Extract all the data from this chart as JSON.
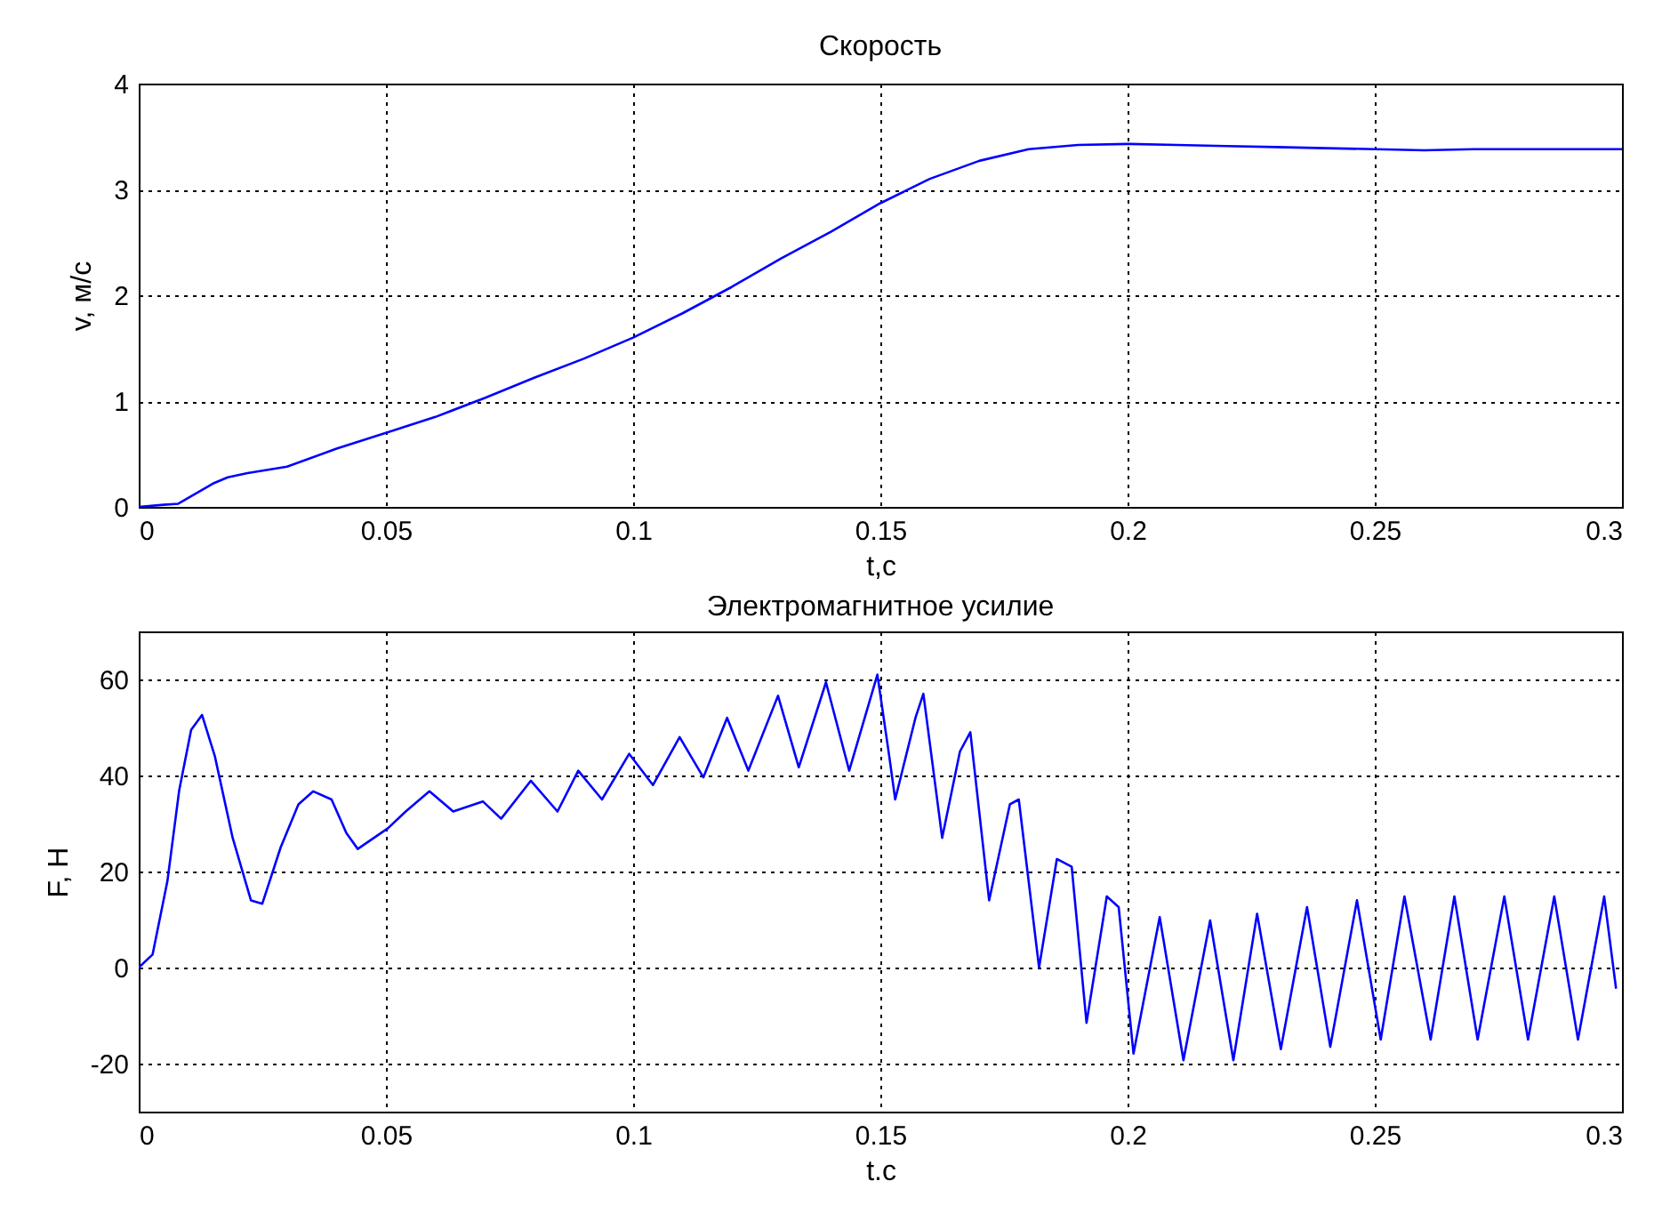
{
  "chart_data": [
    {
      "type": "line",
      "title": "Скорость",
      "xlabel": "t,c",
      "ylabel": "v, м/с",
      "xlim": [
        0,
        0.3
      ],
      "ylim": [
        0,
        4
      ],
      "xticks": [
        0,
        0.05,
        0.1,
        0.15,
        0.2,
        0.25,
        0.3
      ],
      "yticks": [
        0,
        1,
        2,
        3,
        4
      ],
      "grid": true,
      "x": [
        0,
        0.005,
        0.008,
        0.015,
        0.018,
        0.022,
        0.03,
        0.04,
        0.05,
        0.06,
        0.07,
        0.08,
        0.09,
        0.1,
        0.11,
        0.12,
        0.13,
        0.14,
        0.15,
        0.16,
        0.17,
        0.18,
        0.19,
        0.2,
        0.21,
        0.22,
        0.23,
        0.24,
        0.25,
        0.26,
        0.27,
        0.28,
        0.29,
        0.3
      ],
      "series": [
        {
          "color": "#0000ff",
          "values": [
            0,
            0.02,
            0.03,
            0.22,
            0.28,
            0.32,
            0.38,
            0.55,
            0.7,
            0.85,
            1.03,
            1.22,
            1.4,
            1.6,
            1.83,
            2.08,
            2.35,
            2.6,
            2.87,
            3.1,
            3.27,
            3.38,
            3.42,
            3.43,
            3.42,
            3.41,
            3.4,
            3.39,
            3.38,
            3.37,
            3.38,
            3.38,
            3.38,
            3.38
          ]
        }
      ]
    },
    {
      "type": "line",
      "title": "Электромагнитное усилие",
      "xlabel": "t.c",
      "ylabel": "F, H",
      "xlim": [
        0,
        0.3
      ],
      "ylim": [
        -30,
        70
      ],
      "xticks": [
        0,
        0.05,
        0.1,
        0.15,
        0.2,
        0.25,
        0.3
      ],
      "yticks": [
        -20,
        0,
        20,
        40,
        60
      ],
      "grid": true,
      "x": [
        0,
        0.0028,
        0.0058,
        0.0082,
        0.0106,
        0.0128,
        0.0154,
        0.019,
        0.0227,
        0.025,
        0.0287,
        0.0323,
        0.0353,
        0.039,
        0.042,
        0.0443,
        0.0504,
        0.054,
        0.0588,
        0.0636,
        0.0696,
        0.0733,
        0.0793,
        0.0847,
        0.0889,
        0.0937,
        0.0992,
        0.104,
        0.1094,
        0.1142,
        0.119,
        0.1233,
        0.1293,
        0.1335,
        0.139,
        0.1437,
        0.1494,
        0.1518,
        0.153,
        0.1571,
        0.1587,
        0.1625,
        0.1661,
        0.1682,
        0.172,
        0.1762,
        0.178,
        0.1821,
        0.1857,
        0.1887,
        0.1917,
        0.1958,
        0.1982,
        0.2012,
        0.2065,
        0.2113,
        0.2167,
        0.2214,
        0.2262,
        0.231,
        0.2363,
        0.241,
        0.2464,
        0.2512,
        0.256,
        0.2613,
        0.2661,
        0.2708,
        0.2762,
        0.281,
        0.2863,
        0.2911,
        0.2964,
        0.2988
      ],
      "series": [
        {
          "color": "#0000ff",
          "values": [
            0,
            2.7,
            18,
            37,
            49.5,
            52.6,
            44,
            27,
            14,
            13.3,
            25,
            34,
            36.7,
            35,
            28,
            24.7,
            29,
            32.5,
            36.7,
            32.5,
            34.6,
            31,
            38.9,
            32.5,
            41,
            35,
            44.5,
            38,
            48,
            39.6,
            52,
            41,
            56.6,
            41.7,
            59.4,
            41,
            61,
            44,
            35,
            52,
            57,
            27,
            45,
            49,
            14,
            34,
            35,
            0,
            22.6,
            21,
            -11.5,
            14.8,
            12.6,
            -17.9,
            10.5,
            -19.3,
            9.8,
            -19.3,
            11.2,
            -17,
            12.6,
            -16.5,
            14,
            -15,
            14.8,
            -15,
            14.8,
            -15,
            14.8,
            -15,
            14.8,
            -15,
            14.8,
            -4.4
          ]
        }
      ]
    }
  ]
}
